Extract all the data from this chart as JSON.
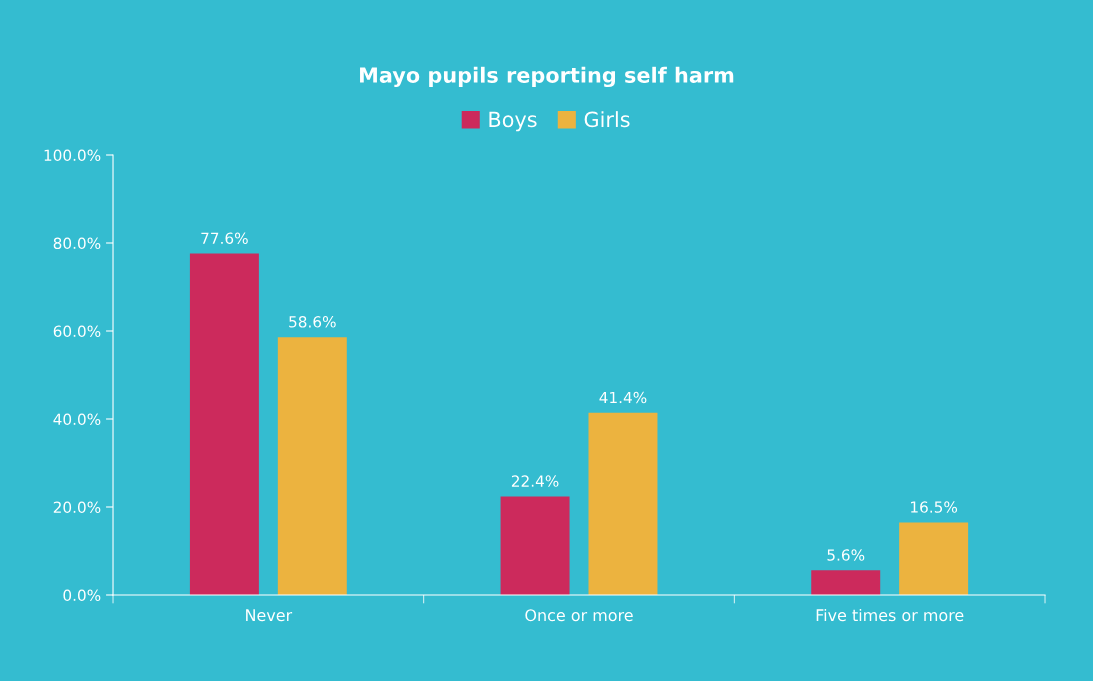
{
  "chart_data": {
    "type": "bar",
    "title": "Mayo pupils reporting self harm",
    "categories": [
      "Never",
      "Once or more",
      "Five times or more"
    ],
    "series": [
      {
        "name": "Boys",
        "color": "#cc2a5c",
        "values": [
          77.6,
          22.4,
          5.6
        ],
        "value_labels": [
          "77.6%",
          "22.4%",
          "5.6%"
        ]
      },
      {
        "name": "Girls",
        "color": "#ecb33f",
        "values": [
          58.6,
          41.4,
          16.5
        ],
        "value_labels": [
          "58.6%",
          "41.4%",
          "16.5%"
        ]
      }
    ],
    "ylim": [
      0,
      100
    ],
    "yticks": [
      {
        "value": 0,
        "label": "0.0%"
      },
      {
        "value": 20,
        "label": "20.0%"
      },
      {
        "value": 40,
        "label": "40.0%"
      },
      {
        "value": 60,
        "label": "60.0%"
      },
      {
        "value": 80,
        "label": "80.0%"
      },
      {
        "value": 100,
        "label": "100.0%"
      }
    ],
    "grid": false,
    "legend": "top"
  }
}
